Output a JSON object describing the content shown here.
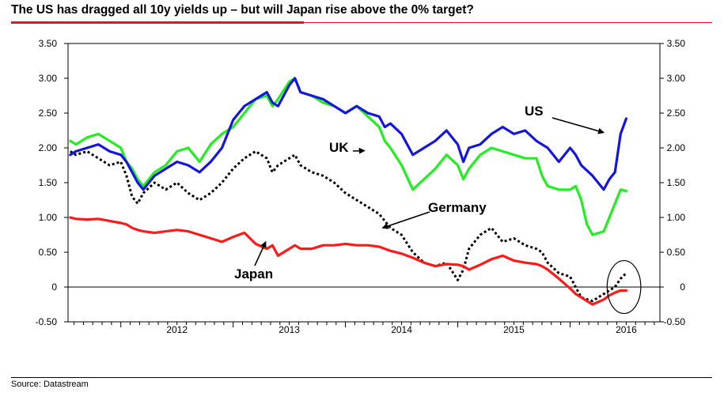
{
  "title": "The US has dragged all 10y yields up – but will Japan rise above the 0% target?",
  "source": "Source: Datastream",
  "colors": {
    "accent": "#e8141b",
    "us": "#1515e0",
    "uk": "#22ee22",
    "germany": "#000000",
    "japan": "#ff1a1a"
  },
  "chart_data": {
    "type": "line",
    "xlim": [
      2011.53,
      2016.8
    ],
    "ylim": [
      -0.5,
      3.5
    ],
    "grid": false,
    "y_ticks": [
      3.5,
      3.0,
      2.5,
      2.0,
      1.5,
      1.0,
      0.5,
      0,
      -0.5
    ],
    "y_tick_labels": [
      "3.50",
      "3.00",
      "2.50",
      "2.00",
      "1.50",
      "1.00",
      "0.50",
      "0",
      "-0.50"
    ],
    "x_year_labels": [
      {
        "label": "2012",
        "at": 2012.5
      },
      {
        "label": "2013",
        "at": 2013.5
      },
      {
        "label": "2014",
        "at": 2014.5
      },
      {
        "label": "2015",
        "at": 2015.5
      },
      {
        "label": "2016",
        "at": 2016.5
      }
    ],
    "reference_line": 0,
    "annotations": [
      {
        "text": "US",
        "series": "US",
        "x": 2016.3,
        "y": 2.22
      },
      {
        "text": "UK",
        "series": "UK",
        "x": 2014.17,
        "y": 1.96
      },
      {
        "text": "Germany",
        "series": "Germany",
        "x": 2014.33,
        "y": 0.85
      },
      {
        "text": "Japan",
        "series": "Japan",
        "x": 2013.29,
        "y": 0.65
      }
    ],
    "highlight_ellipse": {
      "cx": 2016.48,
      "cy": 0.0,
      "rx": 0.15,
      "ry": 0.38
    },
    "series": [
      {
        "name": "US",
        "style": "solid",
        "x": [
          2011.55,
          2011.6,
          2011.7,
          2011.8,
          2011.9,
          2012.0,
          2012.05,
          2012.1,
          2012.15,
          2012.2,
          2012.3,
          2012.4,
          2012.5,
          2012.6,
          2012.7,
          2012.8,
          2012.9,
          2013.0,
          2013.1,
          2013.2,
          2013.3,
          2013.35,
          2013.4,
          2013.5,
          2013.55,
          2013.6,
          2013.7,
          2013.8,
          2013.9,
          2014.0,
          2014.1,
          2014.2,
          2014.3,
          2014.35,
          2014.4,
          2014.5,
          2014.6,
          2014.7,
          2014.8,
          2014.9,
          2015.0,
          2015.05,
          2015.1,
          2015.2,
          2015.3,
          2015.4,
          2015.5,
          2015.6,
          2015.7,
          2015.75,
          2015.8,
          2015.9,
          2016.0,
          2016.05,
          2016.1,
          2016.2,
          2016.3,
          2016.35,
          2016.4,
          2016.45,
          2016.5
        ],
        "y": [
          1.9,
          1.95,
          2.0,
          2.05,
          1.95,
          1.9,
          1.8,
          1.65,
          1.5,
          1.4,
          1.6,
          1.7,
          1.8,
          1.75,
          1.65,
          1.8,
          2.0,
          2.4,
          2.6,
          2.7,
          2.8,
          2.65,
          2.6,
          2.9,
          3.0,
          2.8,
          2.75,
          2.7,
          2.6,
          2.5,
          2.6,
          2.5,
          2.45,
          2.3,
          2.35,
          2.2,
          1.9,
          2.0,
          2.1,
          2.25,
          2.05,
          1.8,
          2.0,
          2.05,
          2.2,
          2.3,
          2.2,
          2.25,
          2.1,
          2.05,
          2.0,
          1.8,
          2.0,
          1.9,
          1.75,
          1.6,
          1.4,
          1.55,
          1.65,
          2.2,
          2.42
        ]
      },
      {
        "name": "UK",
        "style": "solid",
        "x": [
          2011.55,
          2011.6,
          2011.7,
          2011.8,
          2011.9,
          2012.0,
          2012.05,
          2012.1,
          2012.15,
          2012.2,
          2012.3,
          2012.4,
          2012.5,
          2012.6,
          2012.7,
          2012.8,
          2012.9,
          2013.0,
          2013.1,
          2013.2,
          2013.3,
          2013.35,
          2013.4,
          2013.5,
          2013.55,
          2013.6,
          2013.7,
          2013.8,
          2013.9,
          2014.0,
          2014.1,
          2014.2,
          2014.3,
          2014.35,
          2014.4,
          2014.5,
          2014.6,
          2014.7,
          2014.8,
          2014.9,
          2015.0,
          2015.05,
          2015.1,
          2015.2,
          2015.3,
          2015.4,
          2015.5,
          2015.6,
          2015.7,
          2015.75,
          2015.8,
          2015.9,
          2016.0,
          2016.05,
          2016.1,
          2016.15,
          2016.2,
          2016.3,
          2016.35,
          2016.4,
          2016.45,
          2016.5
        ],
        "y": [
          2.1,
          2.05,
          2.15,
          2.2,
          2.1,
          2.0,
          1.8,
          1.7,
          1.55,
          1.45,
          1.65,
          1.75,
          1.95,
          2.0,
          1.8,
          2.05,
          2.2,
          2.3,
          2.5,
          2.7,
          2.75,
          2.6,
          2.7,
          2.95,
          3.0,
          2.8,
          2.75,
          2.65,
          2.6,
          2.5,
          2.6,
          2.45,
          2.3,
          2.1,
          2.0,
          1.75,
          1.4,
          1.55,
          1.7,
          1.9,
          1.75,
          1.55,
          1.7,
          1.9,
          2.0,
          1.95,
          1.9,
          1.85,
          1.85,
          1.6,
          1.45,
          1.4,
          1.4,
          1.45,
          1.25,
          0.9,
          0.75,
          0.8,
          1.0,
          1.2,
          1.4,
          1.38
        ]
      },
      {
        "name": "Germany",
        "style": "dotted",
        "x": [
          2011.55,
          2011.6,
          2011.7,
          2011.8,
          2011.9,
          2012.0,
          2012.05,
          2012.1,
          2012.15,
          2012.2,
          2012.3,
          2012.4,
          2012.5,
          2012.6,
          2012.7,
          2012.8,
          2012.9,
          2013.0,
          2013.1,
          2013.2,
          2013.3,
          2013.35,
          2013.4,
          2013.5,
          2013.55,
          2013.6,
          2013.7,
          2013.8,
          2013.9,
          2014.0,
          2014.1,
          2014.2,
          2014.3,
          2014.35,
          2014.4,
          2014.5,
          2014.6,
          2014.7,
          2014.8,
          2014.9,
          2015.0,
          2015.05,
          2015.1,
          2015.2,
          2015.3,
          2015.4,
          2015.5,
          2015.6,
          2015.7,
          2015.75,
          2015.8,
          2015.9,
          2016.0,
          2016.05,
          2016.1,
          2016.2,
          2016.3,
          2016.35,
          2016.4,
          2016.45,
          2016.5
        ],
        "y": [
          1.95,
          1.9,
          1.95,
          1.85,
          1.75,
          1.8,
          1.6,
          1.3,
          1.2,
          1.35,
          1.5,
          1.4,
          1.5,
          1.35,
          1.25,
          1.35,
          1.5,
          1.7,
          1.85,
          1.95,
          1.85,
          1.65,
          1.75,
          1.85,
          1.9,
          1.75,
          1.65,
          1.6,
          1.5,
          1.35,
          1.25,
          1.15,
          1.05,
          0.95,
          0.85,
          0.75,
          0.5,
          0.35,
          0.3,
          0.35,
          0.1,
          0.25,
          0.55,
          0.75,
          0.85,
          0.65,
          0.7,
          0.6,
          0.55,
          0.5,
          0.35,
          0.2,
          0.15,
          0.0,
          -0.15,
          -0.2,
          -0.1,
          -0.05,
          0.0,
          0.12,
          0.2
        ]
      },
      {
        "name": "Japan",
        "style": "solid",
        "x": [
          2011.55,
          2011.6,
          2011.7,
          2011.8,
          2011.9,
          2012.0,
          2012.05,
          2012.1,
          2012.15,
          2012.2,
          2012.3,
          2012.4,
          2012.5,
          2012.6,
          2012.7,
          2012.8,
          2012.9,
          2013.0,
          2013.1,
          2013.2,
          2013.3,
          2013.35,
          2013.4,
          2013.5,
          2013.55,
          2013.6,
          2013.7,
          2013.8,
          2013.9,
          2014.0,
          2014.1,
          2014.2,
          2014.3,
          2014.35,
          2014.4,
          2014.5,
          2014.6,
          2014.7,
          2014.8,
          2014.9,
          2015.0,
          2015.05,
          2015.1,
          2015.2,
          2015.3,
          2015.4,
          2015.5,
          2015.6,
          2015.7,
          2015.75,
          2015.8,
          2015.9,
          2016.0,
          2016.05,
          2016.1,
          2016.15,
          2016.2,
          2016.3,
          2016.35,
          2016.4,
          2016.45,
          2016.5
        ],
        "y": [
          1.0,
          0.98,
          0.97,
          0.98,
          0.95,
          0.92,
          0.9,
          0.85,
          0.82,
          0.8,
          0.78,
          0.8,
          0.82,
          0.8,
          0.75,
          0.7,
          0.65,
          0.72,
          0.78,
          0.62,
          0.55,
          0.6,
          0.45,
          0.55,
          0.6,
          0.55,
          0.55,
          0.6,
          0.6,
          0.62,
          0.6,
          0.6,
          0.58,
          0.55,
          0.52,
          0.48,
          0.42,
          0.35,
          0.3,
          0.33,
          0.32,
          0.3,
          0.25,
          0.32,
          0.4,
          0.45,
          0.38,
          0.35,
          0.33,
          0.3,
          0.25,
          0.12,
          -0.02,
          -0.1,
          -0.15,
          -0.2,
          -0.25,
          -0.18,
          -0.12,
          -0.08,
          -0.05,
          -0.05
        ]
      }
    ]
  }
}
